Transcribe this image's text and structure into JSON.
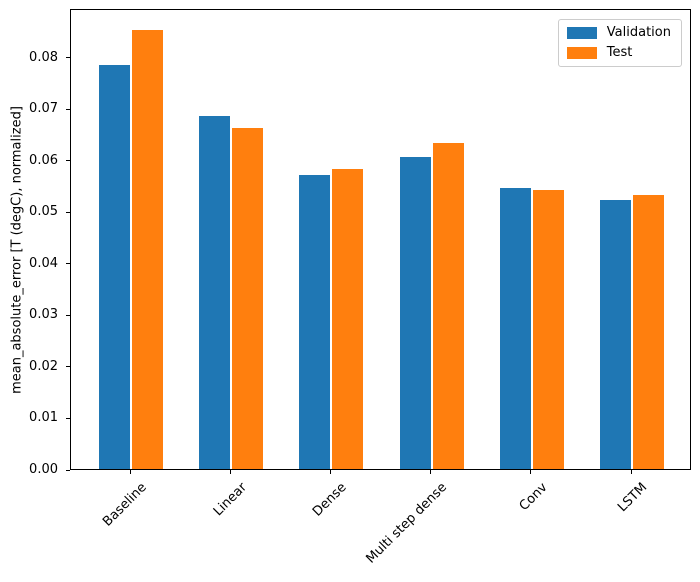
{
  "chart_data": {
    "type": "bar",
    "title": "",
    "categories": [
      "Baseline",
      "Linear",
      "Dense",
      "Multi step dense",
      "Conv",
      "LSTM"
    ],
    "series": [
      {
        "name": "Validation",
        "color": "#1f77b4",
        "values": [
          0.0785,
          0.0686,
          0.0571,
          0.0606,
          0.0545,
          0.0522
        ]
      },
      {
        "name": "Test",
        "color": "#ff7f0e",
        "values": [
          0.0852,
          0.0663,
          0.0583,
          0.0633,
          0.0542,
          0.0532
        ]
      }
    ],
    "xlabel": "",
    "ylabel": "mean_absolute_error [T (degC), normalized]",
    "ylim": [
      0,
      0.0895
    ],
    "yticks": [
      0.0,
      0.01,
      0.02,
      0.03,
      0.04,
      0.05,
      0.06,
      0.07,
      0.08
    ],
    "ytick_labels": [
      "0.00",
      "0.01",
      "0.02",
      "0.03",
      "0.04",
      "0.05",
      "0.06",
      "0.07",
      "0.08"
    ],
    "grid": false,
    "xtick_rotation": 45,
    "legend": {
      "position": "upper right",
      "items": [
        "Validation",
        "Test"
      ]
    }
  }
}
